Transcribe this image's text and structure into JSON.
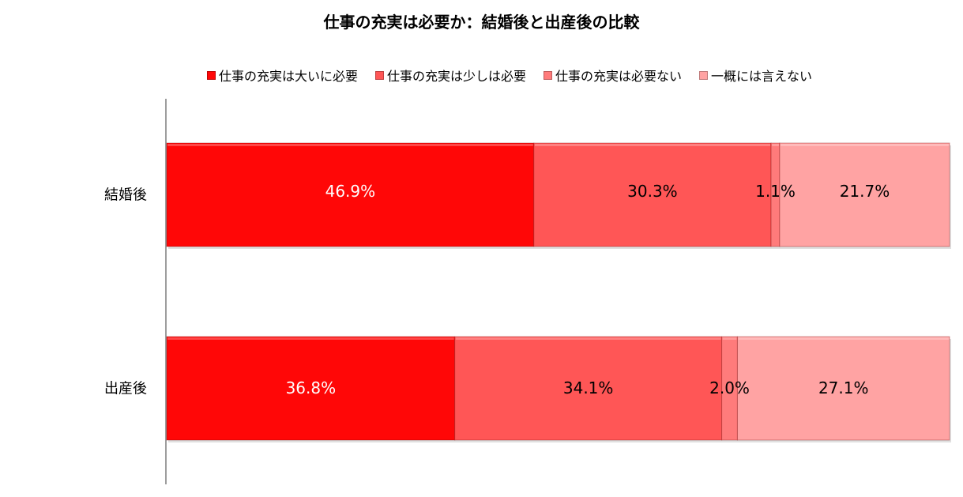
{
  "chart_data": {
    "type": "bar",
    "orientation": "horizontal",
    "stacked": true,
    "title": "仕事の充実は必要か：結婚後と出産後の比較",
    "categories": [
      "結婚後",
      "出産後"
    ],
    "series": [
      {
        "name": "仕事の充実は大いに必要",
        "values": [
          46.9,
          36.8
        ],
        "labels": [
          "46.9%",
          "36.8%"
        ],
        "color": "#ff0707"
      },
      {
        "name": "仕事の充実は少しは必要",
        "values": [
          30.3,
          34.1
        ],
        "labels": [
          "30.3%",
          "34.1%"
        ],
        "color": "#ff5656"
      },
      {
        "name": "仕事の充実は必要ない",
        "values": [
          1.1,
          2.0
        ],
        "labels": [
          "1.1%",
          "2.0%"
        ],
        "color": "#ff7b7b"
      },
      {
        "name": "一概には言えない",
        "values": [
          21.7,
          27.1
        ],
        "labels": [
          "21.7%",
          "27.1%"
        ],
        "color": "#ffa3a3"
      }
    ],
    "xlim": [
      0,
      100
    ],
    "legend_position": "top",
    "grid": false
  }
}
